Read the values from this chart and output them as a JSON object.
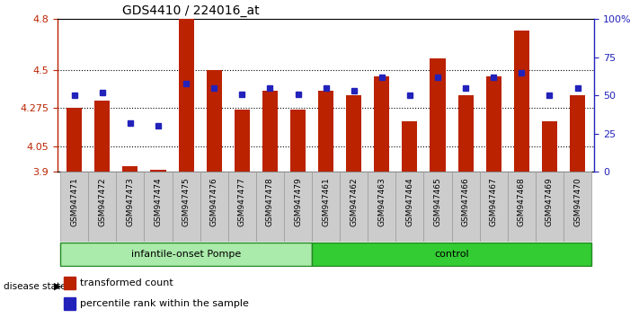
{
  "title": "GDS4410 / 224016_at",
  "samples": [
    "GSM947471",
    "GSM947472",
    "GSM947473",
    "GSM947474",
    "GSM947475",
    "GSM947476",
    "GSM947477",
    "GSM947478",
    "GSM947479",
    "GSM947461",
    "GSM947462",
    "GSM947463",
    "GSM947464",
    "GSM947465",
    "GSM947466",
    "GSM947467",
    "GSM947468",
    "GSM947469",
    "GSM947470"
  ],
  "red_values": [
    4.275,
    4.32,
    3.93,
    3.91,
    4.8,
    4.5,
    4.265,
    4.38,
    4.265,
    4.38,
    4.35,
    4.46,
    4.2,
    4.57,
    4.35,
    4.46,
    4.73,
    4.2,
    4.35
  ],
  "blue_percentiles": [
    50,
    52,
    32,
    30,
    58,
    55,
    51,
    55,
    51,
    55,
    53,
    62,
    50,
    62,
    55,
    62,
    65,
    50,
    55
  ],
  "group1_label": "infantile-onset Pompe",
  "group2_label": "control",
  "group1_count": 9,
  "group2_count": 10,
  "y_min": 3.9,
  "y_max": 4.8,
  "y_ticks": [
    3.9,
    4.05,
    4.275,
    4.5,
    4.8
  ],
  "y_tick_labels": [
    "3.9",
    "4.05",
    "4.275",
    "4.5",
    "4.8"
  ],
  "right_y_ticks": [
    0,
    25,
    50,
    75,
    100
  ],
  "right_y_tick_labels": [
    "0",
    "25",
    "50",
    "75",
    "100%"
  ],
  "bar_color": "#bb2200",
  "dot_color": "#2222bb",
  "bar_width": 0.55,
  "background_color": "#ffffff",
  "group1_bg": "#aaeaaa",
  "group2_bg": "#33cc33",
  "sample_bg": "#cccccc",
  "legend_label1": "transformed count",
  "legend_label2": "percentile rank within the sample"
}
